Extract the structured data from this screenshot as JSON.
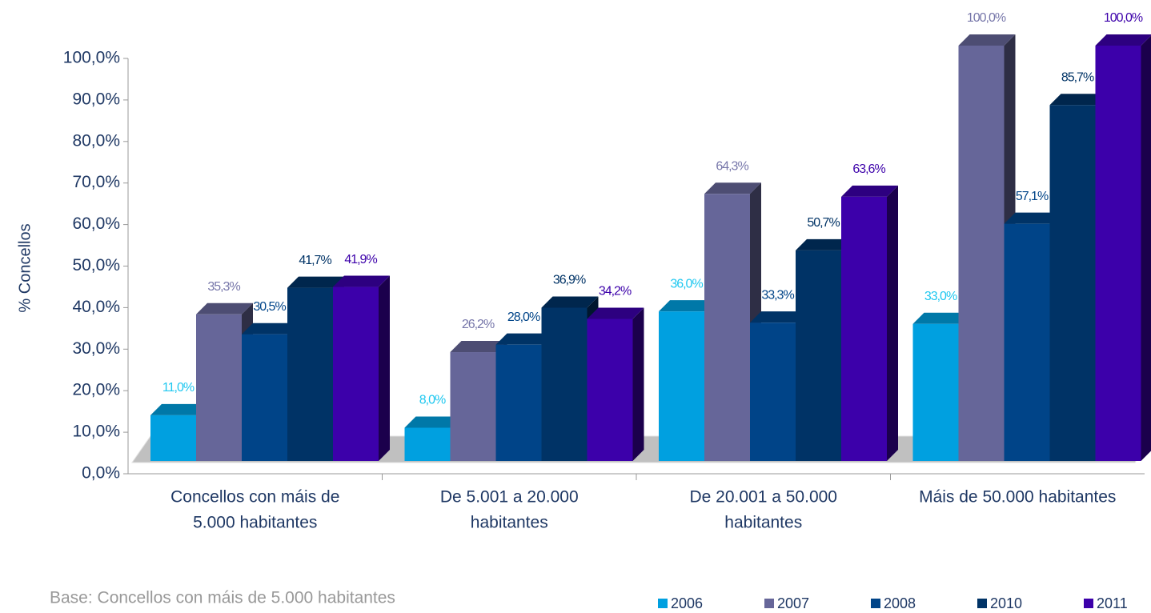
{
  "chart_data": {
    "type": "bar3d",
    "y_label": "% Concellos",
    "footnote": "Base: Concellos con máis de 5.000 habitantes",
    "categories": [
      [
        "Concellos con máis de",
        "5.000 habitantes"
      ],
      [
        "De 5.001 a 20.000",
        "habitantes"
      ],
      [
        "De 20.001 a 50.000",
        "habitantes"
      ],
      [
        "Máis de 50.000 habitantes"
      ]
    ],
    "ylim": [
      0,
      100
    ],
    "yticks": [
      {
        "value": 0,
        "label": "0,0%"
      },
      {
        "value": 10,
        "label": "10,0%"
      },
      {
        "value": 20,
        "label": "20,0%"
      },
      {
        "value": 30,
        "label": "30,0%"
      },
      {
        "value": 40,
        "label": "40,0%"
      },
      {
        "value": 50,
        "label": "50,0%"
      },
      {
        "value": 60,
        "label": "60,0%"
      },
      {
        "value": 70,
        "label": "70,0%"
      },
      {
        "value": 80,
        "label": "80,0%"
      },
      {
        "value": 90,
        "label": "90,0%"
      },
      {
        "value": 100,
        "label": "100,0%"
      }
    ],
    "series": [
      {
        "name": "2006",
        "color": "#00a0e0",
        "values": [
          11.0,
          8.0,
          36.0,
          33.0
        ],
        "value_labels": [
          "11,0%",
          "8,0%",
          "36,0%",
          "33,0%"
        ]
      },
      {
        "name": "2007",
        "color": "#666699",
        "values": [
          35.3,
          26.2,
          64.3,
          100.0
        ],
        "value_labels": [
          "35,3%",
          "26,2%",
          "64,3%",
          "100,0%"
        ]
      },
      {
        "name": "2008",
        "color": "#004488",
        "values": [
          30.5,
          28.0,
          33.3,
          57.1
        ],
        "value_labels": [
          "30,5%",
          "28,0%",
          "33,3%",
          "57,1%"
        ]
      },
      {
        "name": "2010",
        "color": "#003366",
        "values": [
          41.7,
          36.9,
          50.7,
          85.7
        ],
        "value_labels": [
          "41,7%",
          "36,9%",
          "50,7%",
          "85,7%"
        ]
      },
      {
        "name": "2011",
        "color": "#3c00aa",
        "values": [
          41.9,
          34.2,
          63.6,
          100.0
        ],
        "value_labels": [
          "41,9%",
          "34,2%",
          "63,6%",
          "100,0%"
        ]
      }
    ]
  }
}
